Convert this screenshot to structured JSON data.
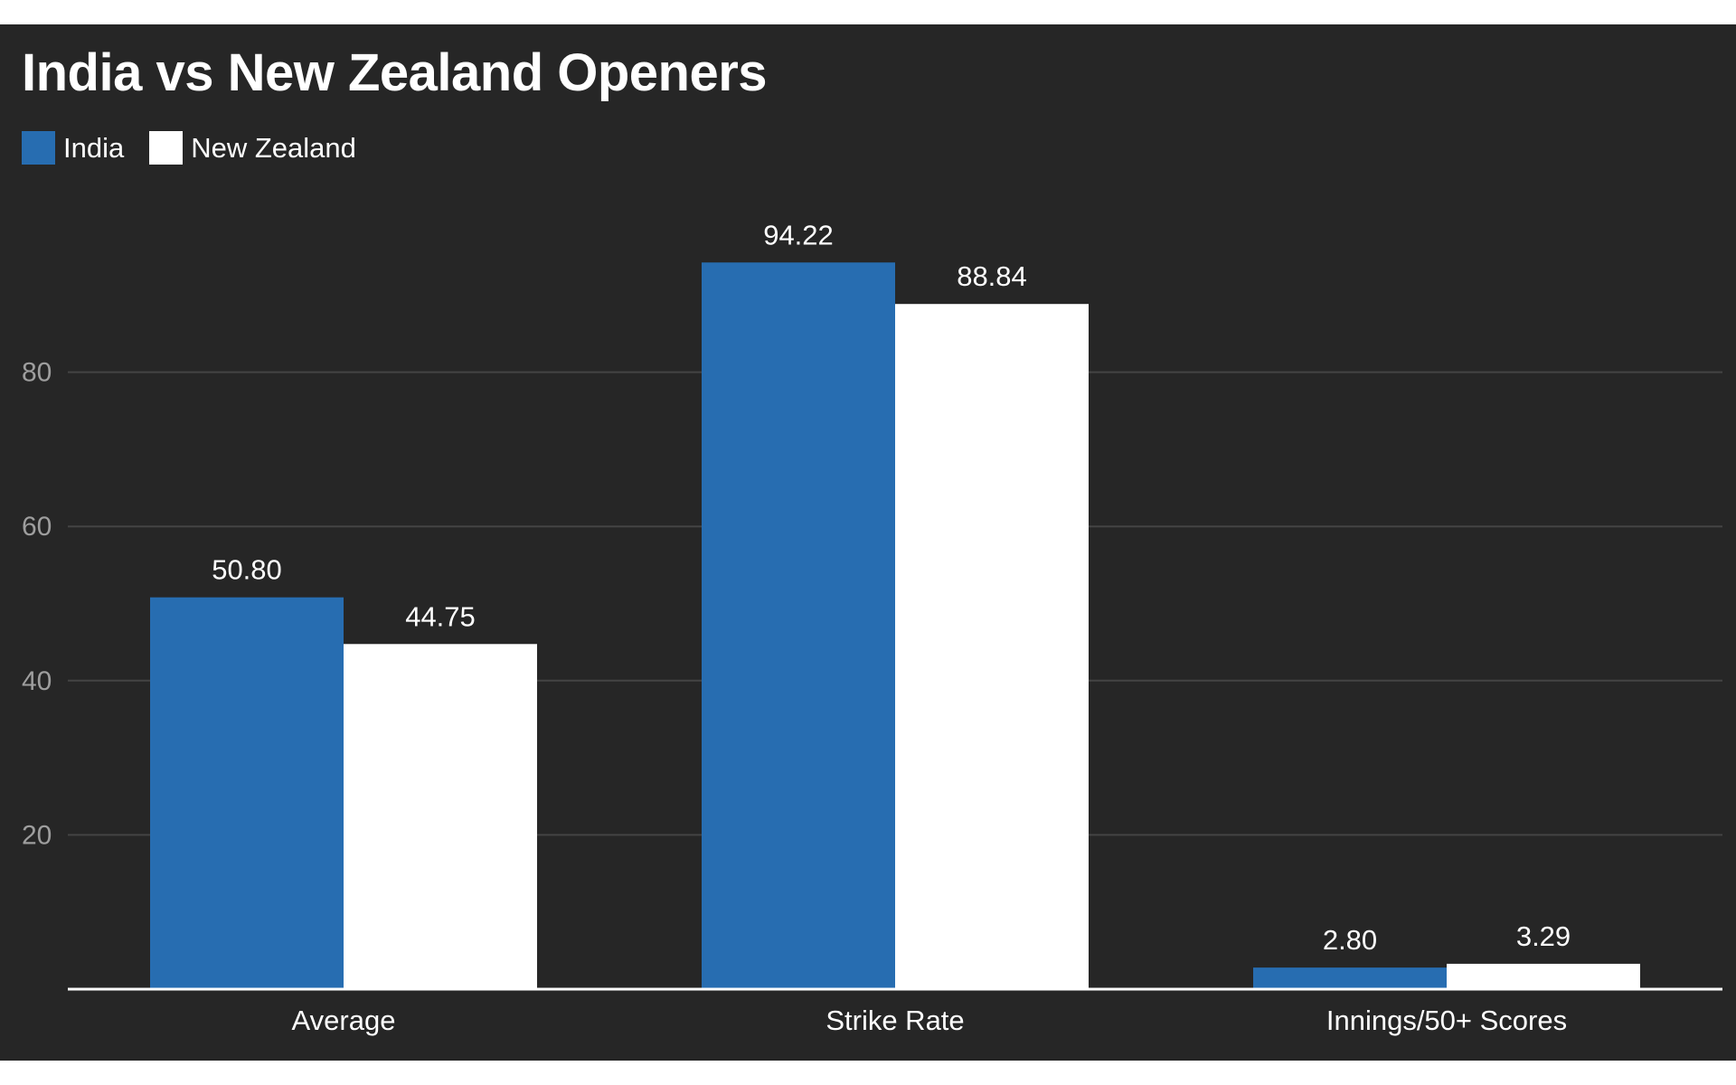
{
  "colors": {
    "background": "#262626",
    "india": "#276db1",
    "new_zealand": "#ffffff",
    "gridline": "#444444",
    "axis": "#ffffff",
    "tick_label": "#9e9e9e",
    "text": "#ffffff"
  },
  "chart_data": {
    "type": "bar",
    "title": "India vs New Zealand Openers",
    "xlabel": "",
    "ylabel": "",
    "categories": [
      "Average",
      "Strike Rate",
      "Innings/50+ Scores"
    ],
    "series": [
      {
        "name": "India",
        "values": [
          50.8,
          94.22,
          2.8
        ],
        "labels": [
          "50.80",
          "94.22",
          "2.80"
        ]
      },
      {
        "name": "New Zealand",
        "values": [
          44.75,
          88.84,
          3.29
        ],
        "labels": [
          "44.75",
          "88.84",
          "3.29"
        ]
      }
    ],
    "yticks": [
      20,
      40,
      60,
      80
    ],
    "ytick_labels": [
      "20",
      "40",
      "60",
      "80"
    ],
    "ylim": [
      0,
      100
    ],
    "grid": true,
    "legend": "top-left"
  }
}
